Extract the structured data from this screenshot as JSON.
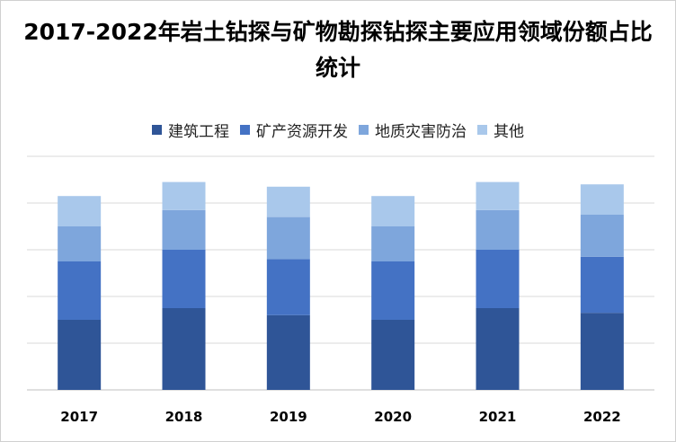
{
  "chart_data": {
    "type": "bar",
    "stacked": true,
    "title": "2017-2022年岩土钻探与矿物勘探钻探主要应用领域份额占比统计",
    "categories": [
      "2017",
      "2018",
      "2019",
      "2020",
      "2021",
      "2022"
    ],
    "series": [
      {
        "name": "建筑工程",
        "color": "#2f5597",
        "values": [
          30,
          35,
          32,
          30,
          35,
          33
        ]
      },
      {
        "name": "矿产资源开发",
        "color": "#4472c4",
        "values": [
          25,
          25,
          24,
          25,
          25,
          24
        ]
      },
      {
        "name": "地质灾害防治",
        "color": "#7ea6dc",
        "values": [
          15,
          17,
          18,
          15,
          17,
          18
        ]
      },
      {
        "name": "其他",
        "color": "#a9c8eb",
        "values": [
          13,
          12,
          13,
          13,
          12,
          13
        ]
      }
    ],
    "ylim": [
      0,
      100
    ],
    "grid": true,
    "legend": "top-center"
  }
}
